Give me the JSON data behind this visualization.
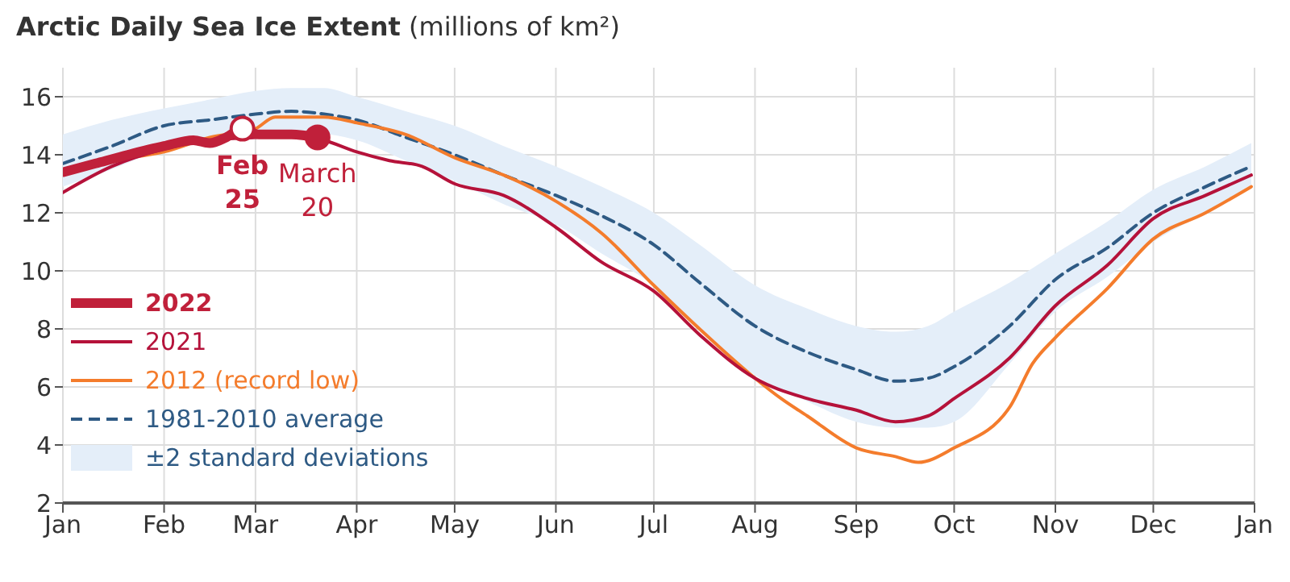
{
  "chart_data": {
    "type": "line",
    "title": "Arctic Daily Sea Ice Extent",
    "subtitle": "(millions of km²)",
    "xlim": [
      "2022-01-01",
      "2023-01-01"
    ],
    "xticks": [
      {
        "value": "2022-01-01",
        "label": "Jan"
      },
      {
        "value": "2022-02-01",
        "label": "Feb"
      },
      {
        "value": "2022-03-01",
        "label": "Mar"
      },
      {
        "value": "2022-04-01",
        "label": "Apr"
      },
      {
        "value": "2022-05-01",
        "label": "May"
      },
      {
        "value": "2022-06-01",
        "label": "Jun"
      },
      {
        "value": "2022-07-01",
        "label": "Jul"
      },
      {
        "value": "2022-08-01",
        "label": "Aug"
      },
      {
        "value": "2022-09-01",
        "label": "Sep"
      },
      {
        "value": "2022-10-01",
        "label": "Oct"
      },
      {
        "value": "2022-11-01",
        "label": "Nov"
      },
      {
        "value": "2022-12-01",
        "label": "Dec"
      },
      {
        "value": "2023-01-01",
        "label": "Jan"
      }
    ],
    "ylim": [
      2,
      17
    ],
    "yticks": [
      2,
      4,
      6,
      8,
      10,
      12,
      14,
      16
    ],
    "grid": true,
    "legend": "bottom left",
    "series": [
      {
        "name": "1981-2010 average",
        "color": "#2e5a84",
        "line_style": "dashed",
        "x": [
          "2022-01-01",
          "2022-01-16",
          "2022-02-01",
          "2022-02-15",
          "2022-03-01",
          "2022-03-12",
          "2022-03-22",
          "2022-04-01",
          "2022-04-16",
          "2022-05-01",
          "2022-05-16",
          "2022-06-01",
          "2022-06-15",
          "2022-07-01",
          "2022-07-15",
          "2022-08-01",
          "2022-08-17",
          "2022-09-01",
          "2022-09-13",
          "2022-09-23",
          "2022-10-01",
          "2022-10-18",
          "2022-11-01",
          "2022-11-17",
          "2022-12-01",
          "2022-12-17",
          "2022-12-31"
        ],
        "values": [
          13.7,
          14.3,
          15.0,
          15.2,
          15.4,
          15.5,
          15.4,
          15.2,
          14.6,
          14.0,
          13.3,
          12.6,
          11.9,
          10.9,
          9.6,
          8.1,
          7.2,
          6.6,
          6.2,
          6.3,
          6.7,
          8.1,
          9.7,
          10.8,
          12.0,
          12.9,
          13.6
        ],
        "lower": [
          12.9,
          13.5,
          14.2,
          14.5,
          14.7,
          14.7,
          14.7,
          14.5,
          13.8,
          13.1,
          12.3,
          11.6,
          10.6,
          9.5,
          8.0,
          6.4,
          5.5,
          4.8,
          4.6,
          4.6,
          4.8,
          6.8,
          8.6,
          9.8,
          11.0,
          12.0,
          12.9
        ],
        "upper": [
          14.7,
          15.2,
          15.6,
          15.9,
          16.2,
          16.3,
          16.3,
          16.0,
          15.5,
          15.0,
          14.3,
          13.6,
          12.9,
          12.0,
          10.9,
          9.5,
          8.7,
          8.1,
          7.9,
          8.1,
          8.6,
          9.6,
          10.6,
          11.7,
          12.8,
          13.6,
          14.4
        ]
      },
      {
        "name": "2012 (record low)",
        "color": "#f47c2c",
        "x": [
          "2022-01-01",
          "2022-01-16",
          "2022-02-01",
          "2022-02-15",
          "2022-03-01",
          "2022-03-07",
          "2022-03-22",
          "2022-04-01",
          "2022-04-16",
          "2022-05-01",
          "2022-05-16",
          "2022-06-01",
          "2022-06-15",
          "2022-07-01",
          "2022-07-15",
          "2022-08-01",
          "2022-08-09",
          "2022-08-17",
          "2022-09-01",
          "2022-09-13",
          "2022-09-20",
          "2022-10-01",
          "2022-10-18",
          "2022-10-25",
          "2022-11-01",
          "2022-11-17",
          "2022-12-01",
          "2022-12-17",
          "2022-12-31"
        ],
        "values": [
          13.4,
          13.8,
          14.1,
          14.6,
          14.9,
          15.3,
          15.3,
          15.1,
          14.7,
          13.9,
          13.3,
          12.4,
          11.3,
          9.5,
          8.0,
          6.3,
          5.6,
          5.0,
          3.9,
          3.6,
          3.4,
          3.9,
          5.3,
          6.8,
          7.7,
          9.4,
          11.1,
          12.0,
          12.9
        ]
      },
      {
        "name": "2021",
        "color": "#b5123a",
        "x": [
          "2022-01-01",
          "2022-01-16",
          "2022-02-01",
          "2022-02-15",
          "2022-03-01",
          "2022-03-12",
          "2022-03-22",
          "2022-04-01",
          "2022-04-11",
          "2022-04-21",
          "2022-05-01",
          "2022-05-16",
          "2022-06-01",
          "2022-06-15",
          "2022-07-01",
          "2022-07-15",
          "2022-08-01",
          "2022-08-17",
          "2022-09-01",
          "2022-09-13",
          "2022-09-23",
          "2022-10-01",
          "2022-10-18",
          "2022-11-01",
          "2022-11-17",
          "2022-12-01",
          "2022-12-17",
          "2022-12-31"
        ],
        "values": [
          12.7,
          13.6,
          14.2,
          14.5,
          14.6,
          14.7,
          14.5,
          14.1,
          13.8,
          13.6,
          13.0,
          12.6,
          11.5,
          10.3,
          9.3,
          7.8,
          6.3,
          5.6,
          5.2,
          4.8,
          5.0,
          5.6,
          7.0,
          8.8,
          10.2,
          11.8,
          12.6,
          13.3
        ]
      },
      {
        "name": "2022",
        "color": "#c0203a",
        "x": [
          "2022-01-01",
          "2022-01-11",
          "2022-01-21",
          "2022-02-01",
          "2022-02-10",
          "2022-02-15",
          "2022-02-20",
          "2022-02-25",
          "2022-03-02",
          "2022-03-12",
          "2022-03-20"
        ],
        "values": [
          13.4,
          13.7,
          14.0,
          14.3,
          14.5,
          14.4,
          14.6,
          14.9,
          14.7,
          14.7,
          14.6
        ]
      }
    ],
    "annotations": [
      "±2 standard deviations",
      {
        "text": "Feb 25",
        "x": "2022-02-25",
        "y": 14.9
      },
      {
        "text": "March 20",
        "x": "2022-03-20",
        "y": 14.6
      }
    ]
  }
}
